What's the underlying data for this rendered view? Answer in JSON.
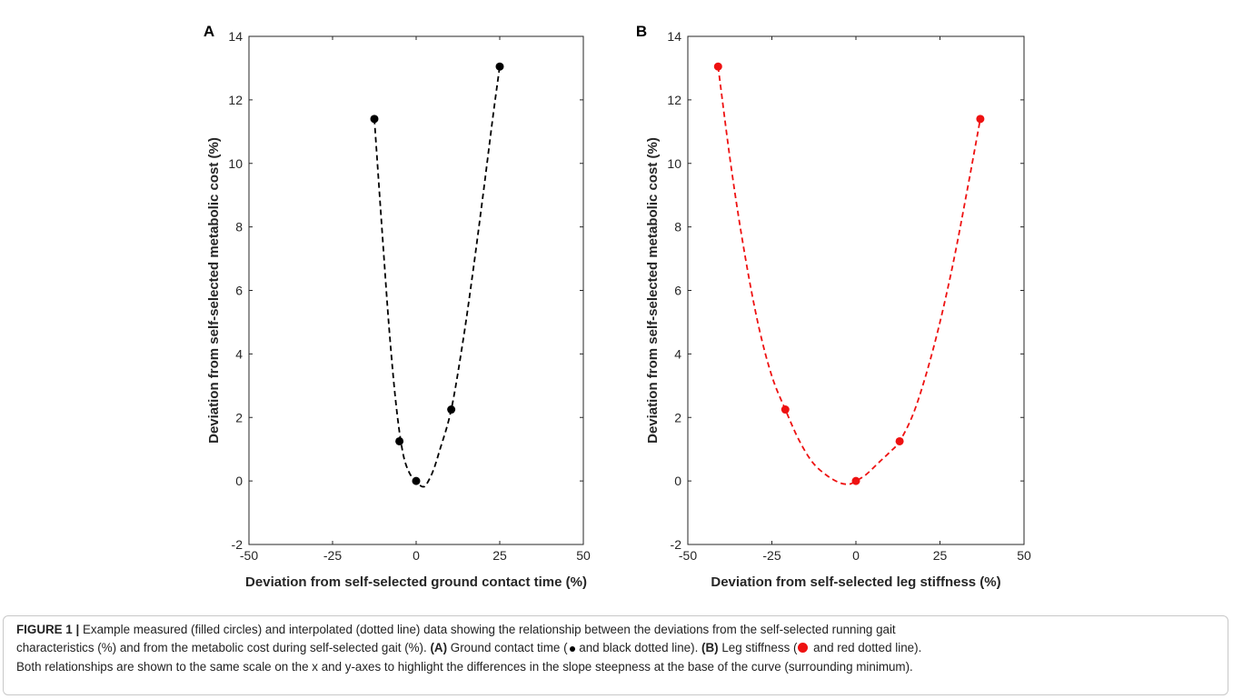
{
  "chart_data": [
    {
      "panel_label": "A",
      "type": "scatter",
      "xlabel": "Deviation from self-selected ground contact time (%)",
      "ylabel": "Deviation from self-selected metabolic cost (%)",
      "xlim": [
        -50,
        50
      ],
      "ylim": [
        -2,
        14
      ],
      "xticks": [
        "-50",
        "-25",
        "0",
        "25",
        "50"
      ],
      "yticks": [
        "-2",
        "0",
        "2",
        "4",
        "6",
        "8",
        "10",
        "12",
        "14"
      ],
      "grid": false,
      "color": "#000000",
      "points": {
        "x": [
          -12.5,
          -5,
          0,
          10.5,
          25
        ],
        "y": [
          11.4,
          1.25,
          0,
          2.25,
          13.05
        ]
      },
      "curve": {
        "style": "dashed",
        "x": [
          -12.5,
          -10,
          -8,
          -6,
          -4,
          -2,
          0,
          1,
          2,
          3,
          5,
          7,
          10.5,
          14,
          17,
          20,
          23,
          25
        ],
        "y": [
          11.4,
          7.6,
          4.7,
          2.4,
          0.9,
          0.25,
          0,
          -0.12,
          -0.18,
          -0.12,
          0.3,
          0.95,
          2.25,
          4.4,
          6.6,
          9.0,
          11.5,
          13.05
        ]
      }
    },
    {
      "panel_label": "B",
      "type": "scatter",
      "xlabel": "Deviation from self-selected leg stiffness (%)",
      "ylabel": "Deviation from self-selected metabolic cost (%)",
      "xlim": [
        -50,
        50
      ],
      "ylim": [
        -2,
        14
      ],
      "xticks": [
        "-50",
        "-25",
        "0",
        "25",
        "50"
      ],
      "yticks": [
        "-2",
        "0",
        "2",
        "4",
        "6",
        "8",
        "10",
        "12",
        "14"
      ],
      "grid": false,
      "color": "#ee1111",
      "points": {
        "x": [
          -41,
          -21,
          0,
          13,
          37
        ],
        "y": [
          13.05,
          2.25,
          0,
          1.25,
          11.4
        ]
      },
      "curve": {
        "style": "dashed",
        "x": [
          -41,
          -37,
          -33,
          -29,
          -25,
          -21,
          -17,
          -13,
          -9,
          -5,
          -2,
          0,
          3,
          7,
          10,
          13,
          17,
          21,
          25,
          29,
          33,
          37
        ],
        "y": [
          13.05,
          9.8,
          7.1,
          4.9,
          3.3,
          2.25,
          1.3,
          0.6,
          0.2,
          -0.05,
          -0.1,
          0,
          0.2,
          0.6,
          0.9,
          1.25,
          2.1,
          3.4,
          5.0,
          6.9,
          9.1,
          11.4
        ]
      }
    }
  ],
  "caption": {
    "label": "FIGURE 1 |",
    "line1": " Example measured (filled circles) and interpolated (dotted line) data showing the relationship between the deviations from the self-selected running gait",
    "line2_pre": "characteristics (%) and from the metabolic cost during self-selected gait (%). ",
    "line2_a_label": "(A)",
    "line2_a_text": " Ground contact time (",
    "line2_a_end": " and black dotted line). ",
    "line2_b_label": "(B)",
    "line2_b_text": " Leg stiffness (",
    "line2_b_end": " and red dotted line).",
    "line3": "Both relationships are shown to the same scale on the x and y-axes to highlight the differences in the slope steepness at the base of the curve (surrounding minimum)."
  }
}
